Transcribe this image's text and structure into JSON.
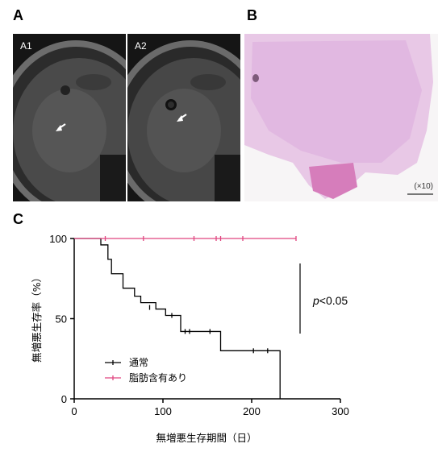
{
  "panels": {
    "a_label": "A",
    "b_label": "B",
    "c_label": "C",
    "mri_left_label": "A1",
    "mri_right_label": "A2",
    "histology_magnification": "(×10)"
  },
  "colors": {
    "series_normal": "#000000",
    "series_fat": "#e0457f",
    "histology_stain": "#d27fbf"
  },
  "chart_data": {
    "type": "line",
    "xlabel": "無増悪生存期間（日）",
    "ylabel": "無増悪生存率（%）",
    "xlim": [
      0,
      300
    ],
    "ylim": [
      0,
      100
    ],
    "xticks": [
      0,
      100,
      200,
      300
    ],
    "yticks": [
      0,
      50,
      100
    ],
    "annotation": {
      "italic": "p",
      "text": "<0.05"
    },
    "legend_position": "lower-left",
    "series": [
      {
        "name": "通常",
        "color": "#000000",
        "steps": [
          [
            0,
            100
          ],
          [
            30,
            100
          ],
          [
            30,
            96
          ],
          [
            38,
            96
          ],
          [
            38,
            87
          ],
          [
            42,
            87
          ],
          [
            42,
            78
          ],
          [
            55,
            78
          ],
          [
            55,
            69
          ],
          [
            68,
            69
          ],
          [
            68,
            64
          ],
          [
            75,
            64
          ],
          [
            75,
            60
          ],
          [
            92,
            60
          ],
          [
            92,
            56
          ],
          [
            103,
            56
          ],
          [
            103,
            52
          ],
          [
            120,
            52
          ],
          [
            120,
            42
          ],
          [
            165,
            42
          ],
          [
            165,
            30
          ],
          [
            232,
            30
          ],
          [
            232,
            0
          ]
        ],
        "censored": [
          [
            85,
            57
          ],
          [
            110,
            52
          ],
          [
            125,
            42
          ],
          [
            130,
            42
          ],
          [
            153,
            42
          ],
          [
            202,
            30
          ],
          [
            218,
            30
          ]
        ]
      },
      {
        "name": "脂肪含有あり",
        "color": "#e0457f",
        "steps": [
          [
            0,
            100
          ],
          [
            250,
            100
          ]
        ],
        "censored": [
          [
            35,
            100
          ],
          [
            78,
            100
          ],
          [
            135,
            100
          ],
          [
            160,
            100
          ],
          [
            165,
            100
          ],
          [
            190,
            100
          ],
          [
            250,
            100
          ]
        ]
      }
    ]
  }
}
